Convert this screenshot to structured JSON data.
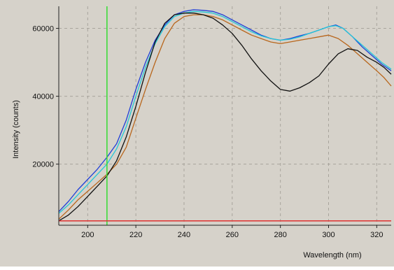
{
  "chart_data": {
    "type": "line",
    "xlabel": "Wavelength (nm)",
    "ylabel": "Intensity (counts)",
    "xlim": [
      188,
      326
    ],
    "ylim": [
      2000,
      66500
    ],
    "x_ticks": [
      200,
      220,
      240,
      260,
      280,
      300,
      320
    ],
    "y_ticks": [
      20000,
      40000,
      60000
    ],
    "x_tick_labels": [
      "200",
      "220",
      "240",
      "260",
      "280",
      "300",
      "320"
    ],
    "y_tick_labels": [
      "20000",
      "40000",
      "60000"
    ],
    "grid": true,
    "legend": "none",
    "plot_background": "#d6d2ca",
    "grid_color": "#a8a49c",
    "marker_line": {
      "x": 208,
      "color": "#33dd33"
    },
    "baseline": {
      "y": 3300,
      "color": "#e03030"
    },
    "series": [
      {
        "color": "#1f3fd8",
        "points": [
          [
            188,
            6000
          ],
          [
            192,
            9000
          ],
          [
            196,
            12500
          ],
          [
            200,
            15500
          ],
          [
            204,
            18500
          ],
          [
            208,
            22000
          ],
          [
            212,
            26000
          ],
          [
            216,
            33000
          ],
          [
            220,
            42000
          ],
          [
            224,
            50000
          ],
          [
            228,
            56500
          ],
          [
            232,
            61000
          ],
          [
            236,
            64000
          ],
          [
            240,
            65000
          ],
          [
            244,
            65500
          ],
          [
            248,
            65300
          ],
          [
            252,
            65000
          ],
          [
            256,
            64000
          ],
          [
            260,
            62500
          ],
          [
            264,
            61000
          ],
          [
            268,
            59500
          ],
          [
            272,
            58000
          ],
          [
            276,
            57000
          ],
          [
            280,
            56500
          ],
          [
            284,
            57000
          ],
          [
            288,
            57800
          ],
          [
            292,
            58500
          ],
          [
            296,
            59500
          ],
          [
            300,
            60500
          ],
          [
            303,
            61000
          ],
          [
            306,
            60000
          ],
          [
            310,
            57500
          ],
          [
            314,
            54500
          ],
          [
            318,
            52000
          ],
          [
            322,
            49500
          ],
          [
            326,
            47500
          ]
        ]
      },
      {
        "color": "#22c8d8",
        "points": [
          [
            188,
            5500
          ],
          [
            192,
            8000
          ],
          [
            196,
            11000
          ],
          [
            200,
            14000
          ],
          [
            204,
            17000
          ],
          [
            208,
            20000
          ],
          [
            212,
            24500
          ],
          [
            216,
            31000
          ],
          [
            220,
            40000
          ],
          [
            224,
            48500
          ],
          [
            228,
            55500
          ],
          [
            232,
            60500
          ],
          [
            236,
            63500
          ],
          [
            240,
            64500
          ],
          [
            244,
            65000
          ],
          [
            248,
            64800
          ],
          [
            252,
            64500
          ],
          [
            256,
            63500
          ],
          [
            260,
            62000
          ],
          [
            264,
            60500
          ],
          [
            268,
            59000
          ],
          [
            272,
            57800
          ],
          [
            276,
            57000
          ],
          [
            280,
            56500
          ],
          [
            284,
            56800
          ],
          [
            288,
            57500
          ],
          [
            292,
            58500
          ],
          [
            296,
            59500
          ],
          [
            300,
            60500
          ],
          [
            303,
            60800
          ],
          [
            306,
            60000
          ],
          [
            310,
            57500
          ],
          [
            314,
            55000
          ],
          [
            318,
            52500
          ],
          [
            322,
            50000
          ],
          [
            326,
            48000
          ]
        ]
      },
      {
        "color": "#b8661c",
        "points": [
          [
            188,
            3800
          ],
          [
            192,
            6500
          ],
          [
            196,
            9500
          ],
          [
            200,
            12000
          ],
          [
            204,
            14500
          ],
          [
            208,
            17000
          ],
          [
            212,
            20000
          ],
          [
            216,
            25000
          ],
          [
            220,
            33500
          ],
          [
            224,
            42000
          ],
          [
            228,
            50000
          ],
          [
            232,
            57000
          ],
          [
            236,
            61500
          ],
          [
            240,
            63500
          ],
          [
            244,
            64000
          ],
          [
            248,
            64000
          ],
          [
            252,
            63500
          ],
          [
            256,
            62500
          ],
          [
            260,
            61000
          ],
          [
            264,
            59500
          ],
          [
            268,
            58000
          ],
          [
            272,
            57000
          ],
          [
            276,
            56000
          ],
          [
            280,
            55500
          ],
          [
            284,
            56000
          ],
          [
            288,
            56500
          ],
          [
            292,
            57000
          ],
          [
            296,
            57500
          ],
          [
            300,
            58000
          ],
          [
            304,
            57000
          ],
          [
            308,
            55000
          ],
          [
            312,
            52500
          ],
          [
            316,
            50000
          ],
          [
            320,
            47500
          ],
          [
            323,
            45500
          ],
          [
            326,
            43000
          ]
        ]
      },
      {
        "color": "#111111",
        "points": [
          [
            188,
            3300
          ],
          [
            192,
            5000
          ],
          [
            196,
            7500
          ],
          [
            200,
            10500
          ],
          [
            204,
            13500
          ],
          [
            208,
            16500
          ],
          [
            212,
            21000
          ],
          [
            216,
            28000
          ],
          [
            220,
            37000
          ],
          [
            224,
            47000
          ],
          [
            228,
            56000
          ],
          [
            232,
            61500
          ],
          [
            236,
            64000
          ],
          [
            240,
            64500
          ],
          [
            244,
            64500
          ],
          [
            248,
            64000
          ],
          [
            252,
            63000
          ],
          [
            256,
            61000
          ],
          [
            260,
            58500
          ],
          [
            264,
            55000
          ],
          [
            268,
            51000
          ],
          [
            272,
            47500
          ],
          [
            276,
            44500
          ],
          [
            280,
            42000
          ],
          [
            284,
            41500
          ],
          [
            288,
            42500
          ],
          [
            292,
            44000
          ],
          [
            296,
            46000
          ],
          [
            300,
            49500
          ],
          [
            304,
            52500
          ],
          [
            308,
            54000
          ],
          [
            312,
            53500
          ],
          [
            316,
            51500
          ],
          [
            320,
            50000
          ],
          [
            323,
            48500
          ],
          [
            326,
            46500
          ]
        ]
      }
    ]
  }
}
